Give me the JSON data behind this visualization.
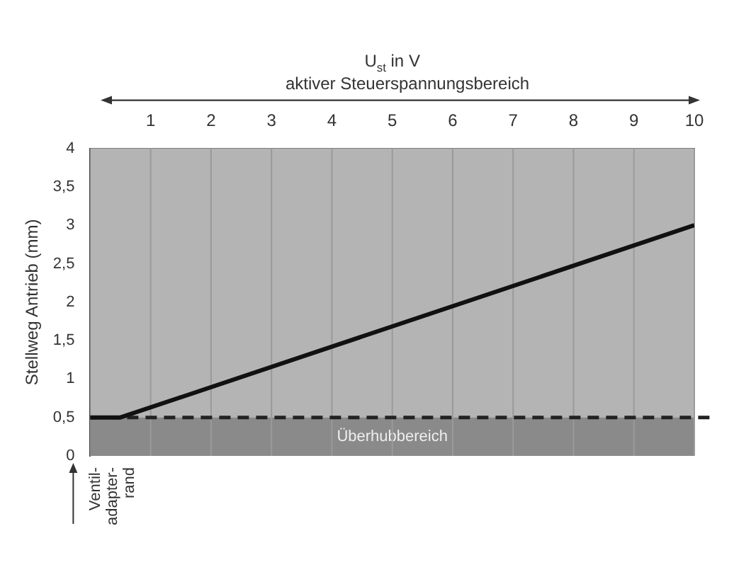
{
  "chart_data": {
    "type": "line",
    "xlabel": "U$_{st}$ in V",
    "ylabel": "Stellweg Antrieb (mm)",
    "annotations": [
      "aktiver Steuerspannungsbereich",
      "Ventil-adapter-rand"
    ],
    "x": [
      0,
      0.5,
      10
    ],
    "series": [
      {
        "color": "#111111",
        "values": [
          0.5,
          0.5,
          3
        ]
      }
    ],
    "xlim": [
      0,
      10
    ],
    "xticks": [
      1,
      2,
      3,
      4,
      5,
      6,
      7,
      8,
      9,
      10
    ],
    "ylim": [
      0,
      4
    ],
    "yticks": [
      0,
      {
        "value": 0.5,
        "label": "0,5"
      },
      1,
      {
        "value": 1.5,
        "label": "1,5"
      },
      2,
      {
        "value": 2.5,
        "label": "2,5"
      },
      3,
      {
        "value": 3.5,
        "label": "3,5"
      },
      4
    ],
    "ref_lines": [
      {
        "axis": "y",
        "value": 0.5,
        "color": "#222222",
        "line_style": "dashed"
      }
    ],
    "bands": [
      {
        "axis": "y",
        "from": 0,
        "to": 0.5,
        "label": "Überhubbereich",
        "color": "#8a8a8a"
      }
    ],
    "grid": "x",
    "marker": "none",
    "line_style": "solid"
  }
}
